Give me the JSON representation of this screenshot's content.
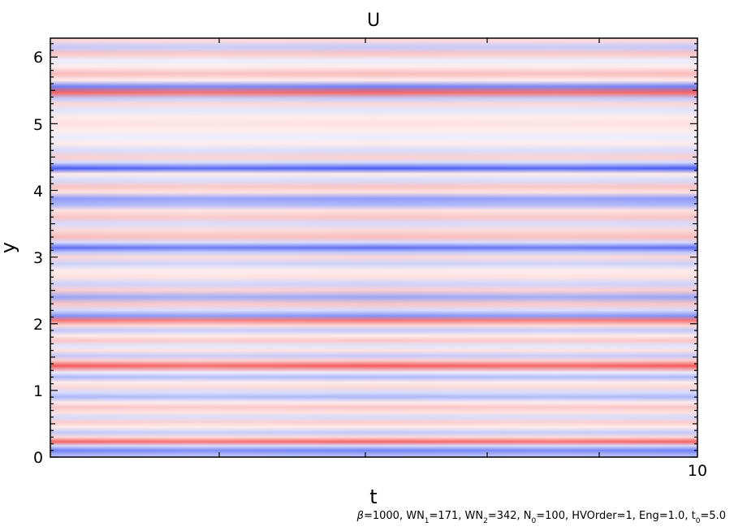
{
  "chart_data": {
    "type": "heatmap",
    "title": "U",
    "xlabel": "t",
    "ylabel": "y",
    "xlim": [
      0,
      10
    ],
    "ylim": [
      0,
      6.283
    ],
    "x_tick_labels": [
      "10"
    ],
    "y_tick_labels": [
      "0",
      "1",
      "2",
      "3",
      "4",
      "5",
      "6"
    ],
    "y_ticks": [
      0,
      1,
      2,
      3,
      4,
      5,
      6
    ],
    "colormap": {
      "negative": "#3348f0",
      "zero": "#ffffff",
      "positive": "#f23a3a"
    },
    "value_range": [
      -1,
      1
    ],
    "bands": [
      {
        "y": 0.03,
        "v": -0.4
      },
      {
        "y": 0.1,
        "v": -0.7
      },
      {
        "y": 0.17,
        "v": -0.2
      },
      {
        "y": 0.23,
        "v": 0.8
      },
      {
        "y": 0.3,
        "v": 0.2
      },
      {
        "y": 0.37,
        "v": -0.3
      },
      {
        "y": 0.45,
        "v": 0.1
      },
      {
        "y": 0.52,
        "v": 0.25
      },
      {
        "y": 0.6,
        "v": -0.2
      },
      {
        "y": 0.67,
        "v": 0.15
      },
      {
        "y": 0.75,
        "v": 0.3
      },
      {
        "y": 0.82,
        "v": 0.1
      },
      {
        "y": 0.9,
        "v": -0.4
      },
      {
        "y": 0.97,
        "v": -0.2
      },
      {
        "y": 1.05,
        "v": 0.2
      },
      {
        "y": 1.12,
        "v": 0.1
      },
      {
        "y": 1.2,
        "v": -0.4
      },
      {
        "y": 1.27,
        "v": -0.1
      },
      {
        "y": 1.37,
        "v": 0.85
      },
      {
        "y": 1.45,
        "v": 0.25
      },
      {
        "y": 1.52,
        "v": -0.3
      },
      {
        "y": 1.6,
        "v": 0.15
      },
      {
        "y": 1.67,
        "v": -0.15
      },
      {
        "y": 1.75,
        "v": 0.3
      },
      {
        "y": 1.82,
        "v": 0.1
      },
      {
        "y": 1.9,
        "v": -0.3
      },
      {
        "y": 1.97,
        "v": 0.2
      },
      {
        "y": 2.05,
        "v": 0.7
      },
      {
        "y": 2.12,
        "v": -0.6
      },
      {
        "y": 2.2,
        "v": -0.2
      },
      {
        "y": 2.3,
        "v": 0.3
      },
      {
        "y": 2.4,
        "v": -0.5
      },
      {
        "y": 2.5,
        "v": 0.25
      },
      {
        "y": 2.6,
        "v": -0.25
      },
      {
        "y": 2.7,
        "v": 0.15
      },
      {
        "y": 2.8,
        "v": 0.1
      },
      {
        "y": 2.9,
        "v": -0.25
      },
      {
        "y": 3.0,
        "v": 0.2
      },
      {
        "y": 3.07,
        "v": -0.3
      },
      {
        "y": 3.14,
        "v": -0.8
      },
      {
        "y": 3.22,
        "v": -0.2
      },
      {
        "y": 3.3,
        "v": 0.35
      },
      {
        "y": 3.4,
        "v": 0.2
      },
      {
        "y": 3.5,
        "v": -0.2
      },
      {
        "y": 3.6,
        "v": 0.3
      },
      {
        "y": 3.7,
        "v": 0.15
      },
      {
        "y": 3.78,
        "v": -0.4
      },
      {
        "y": 3.88,
        "v": -0.55
      },
      {
        "y": 3.97,
        "v": 0.15
      },
      {
        "y": 4.05,
        "v": 0.3
      },
      {
        "y": 4.15,
        "v": -0.2
      },
      {
        "y": 4.25,
        "v": 0.1
      },
      {
        "y": 4.33,
        "v": -0.9
      },
      {
        "y": 4.42,
        "v": -0.2
      },
      {
        "y": 4.5,
        "v": 0.25
      },
      {
        "y": 4.6,
        "v": -0.2
      },
      {
        "y": 4.7,
        "v": 0.1
      },
      {
        "y": 4.8,
        "v": -0.1
      },
      {
        "y": 4.9,
        "v": 0.1
      },
      {
        "y": 5.0,
        "v": 0.15
      },
      {
        "y": 5.1,
        "v": 0.1
      },
      {
        "y": 5.2,
        "v": -0.15
      },
      {
        "y": 5.3,
        "v": 0.2
      },
      {
        "y": 5.38,
        "v": -0.3
      },
      {
        "y": 5.47,
        "v": 0.8
      },
      {
        "y": 5.56,
        "v": -0.7
      },
      {
        "y": 5.65,
        "v": 0.1
      },
      {
        "y": 5.75,
        "v": 0.35
      },
      {
        "y": 5.85,
        "v": 0.1
      },
      {
        "y": 5.95,
        "v": -0.1
      },
      {
        "y": 6.05,
        "v": 0.3
      },
      {
        "y": 6.15,
        "v": -0.3
      },
      {
        "y": 6.25,
        "v": 0.2
      }
    ]
  },
  "caption": {
    "beta": "β",
    "p1": "=1000, WN",
    "s1": "1",
    "p2": "=171, WN",
    "s2": "2",
    "p3": "=342, N",
    "s3": "0",
    "p4": "=100, HVOrder=1, Eng=1.0, t",
    "s4": "0",
    "p5": "=5.0"
  }
}
